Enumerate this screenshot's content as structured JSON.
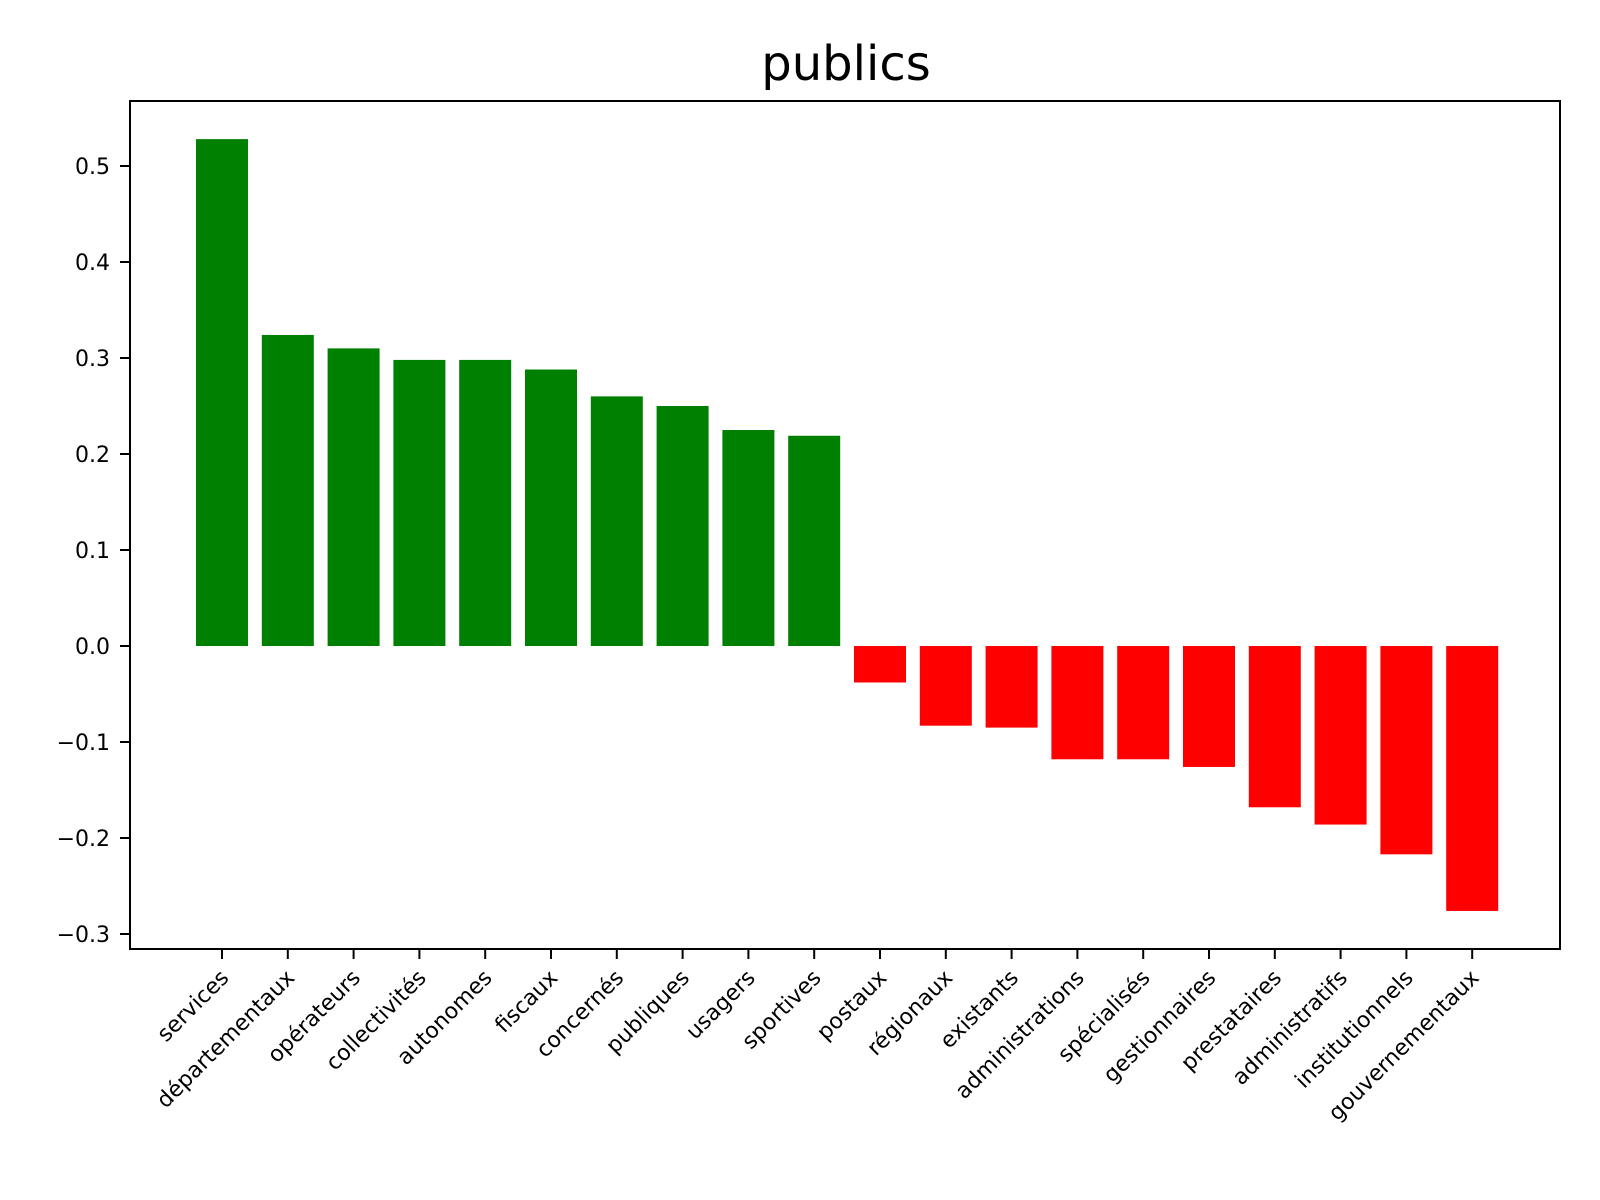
{
  "chart_data": {
    "type": "bar",
    "title": "publics",
    "xlabel": "",
    "ylabel": "",
    "categories": [
      "services",
      "départementaux",
      "opérateurs",
      "collectivités",
      "autonomes",
      "fiscaux",
      "concernés",
      "publiques",
      "usagers",
      "sportives",
      "postaux",
      "régionaux",
      "existants",
      "administrations",
      "spécialisés",
      "gestionnaires",
      "prestataires",
      "administratifs",
      "institutionnels",
      "gouvernementaux"
    ],
    "values": [
      0.528,
      0.324,
      0.31,
      0.298,
      0.298,
      0.288,
      0.26,
      0.25,
      0.225,
      0.219,
      -0.038,
      -0.083,
      -0.085,
      -0.118,
      -0.118,
      -0.126,
      -0.168,
      -0.186,
      -0.217,
      -0.276
    ],
    "ylim": [
      -0.315,
      0.57
    ],
    "yticks": [
      -0.3,
      -0.2,
      -0.1,
      0.0,
      0.1,
      0.2,
      0.3,
      0.4,
      0.5
    ],
    "ytick_labels": [
      "−0.3",
      "−0.2",
      "−0.1",
      "0.0",
      "0.1",
      "0.2",
      "0.3",
      "0.4",
      "0.5"
    ],
    "colors": {
      "positive": "#008000",
      "negative": "#ff0000"
    },
    "grid": false
  }
}
